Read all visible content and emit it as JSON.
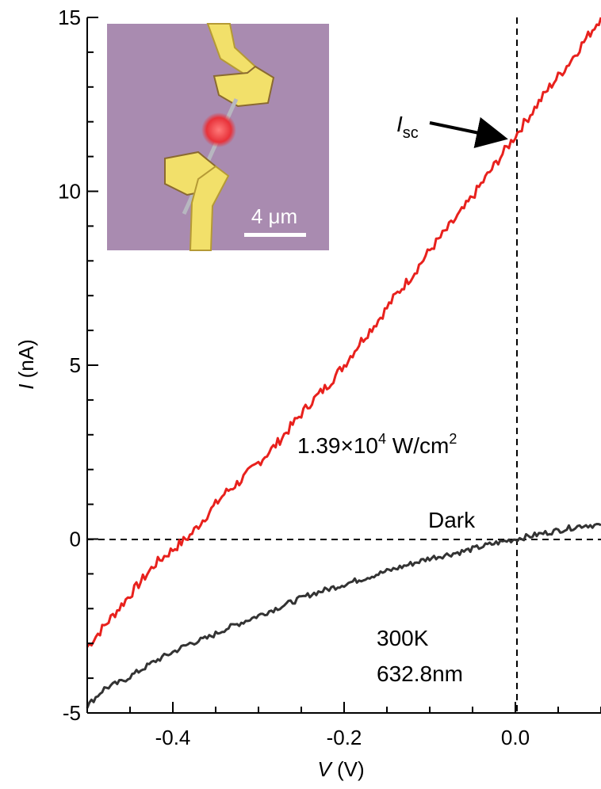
{
  "chart_data": {
    "type": "line",
    "xlabel": {
      "var": "V",
      "unit": " (V)"
    },
    "ylabel": {
      "var": "I",
      "unit": " (nA)"
    },
    "xlim": [
      -0.5,
      0.1
    ],
    "ylim": [
      -5,
      15
    ],
    "x_ticks": [
      -0.4,
      -0.2,
      0.0
    ],
    "x_tick_labels": [
      "-0.4",
      "-0.2",
      "0.0"
    ],
    "y_ticks": [
      -5,
      0,
      5,
      10,
      15
    ],
    "y_tick_labels": [
      "-5",
      "0",
      "5",
      "10",
      "15"
    ],
    "reference_lines": {
      "x": 0,
      "y": 0,
      "style": "dashed"
    },
    "series": [
      {
        "name": "1.39×10⁴ W/cm²",
        "color": "#e8211d",
        "x": [
          -0.5,
          -0.48,
          -0.46,
          -0.44,
          -0.42,
          -0.4,
          -0.38,
          -0.36,
          -0.34,
          -0.32,
          -0.3,
          -0.28,
          -0.26,
          -0.24,
          -0.22,
          -0.2,
          -0.18,
          -0.16,
          -0.14,
          -0.12,
          -0.1,
          -0.08,
          -0.06,
          -0.04,
          -0.02,
          0.0,
          0.02,
          0.04,
          0.06,
          0.08,
          0.1
        ],
        "y": [
          -3.1,
          -2.5,
          -1.9,
          -1.3,
          -0.7,
          -0.3,
          0.1,
          0.7,
          1.3,
          1.7,
          2.2,
          2.7,
          3.3,
          3.9,
          4.4,
          5.0,
          5.7,
          6.3,
          7.0,
          7.6,
          8.3,
          8.9,
          9.5,
          10.2,
          10.9,
          11.6,
          12.3,
          13.0,
          13.6,
          14.3,
          15.0
        ]
      },
      {
        "name": "Dark",
        "color": "#333333",
        "x": [
          -0.5,
          -0.48,
          -0.46,
          -0.44,
          -0.42,
          -0.4,
          -0.38,
          -0.36,
          -0.34,
          -0.32,
          -0.3,
          -0.28,
          -0.26,
          -0.24,
          -0.22,
          -0.2,
          -0.18,
          -0.16,
          -0.14,
          -0.12,
          -0.1,
          -0.08,
          -0.06,
          -0.04,
          -0.02,
          0.0,
          0.02,
          0.04,
          0.06,
          0.08,
          0.1
        ],
        "y": [
          -4.8,
          -4.3,
          -4.1,
          -3.8,
          -3.5,
          -3.25,
          -3.0,
          -2.85,
          -2.6,
          -2.4,
          -2.2,
          -2.0,
          -1.8,
          -1.6,
          -1.45,
          -1.3,
          -1.15,
          -1.0,
          -0.85,
          -0.7,
          -0.55,
          -0.45,
          -0.35,
          -0.22,
          -0.1,
          0.0,
          0.1,
          0.2,
          0.3,
          0.4,
          0.4
        ]
      }
    ],
    "annotations": {
      "intensity": {
        "mantissa": "1.39×10",
        "exp": "4",
        "unit": " W/cm",
        "unit_exp": "2",
        "color": "#e8211d"
      },
      "dark": "Dark",
      "temperature": "300K",
      "wavelength": "632.8nm",
      "isc": {
        "symbol": "I",
        "sub": "sc"
      }
    },
    "inset": {
      "scale_bar_label": "4 μm",
      "background_color": "#a98bb0",
      "electrode_color": "#f2e06a",
      "spot_color": "#e8323a"
    }
  }
}
